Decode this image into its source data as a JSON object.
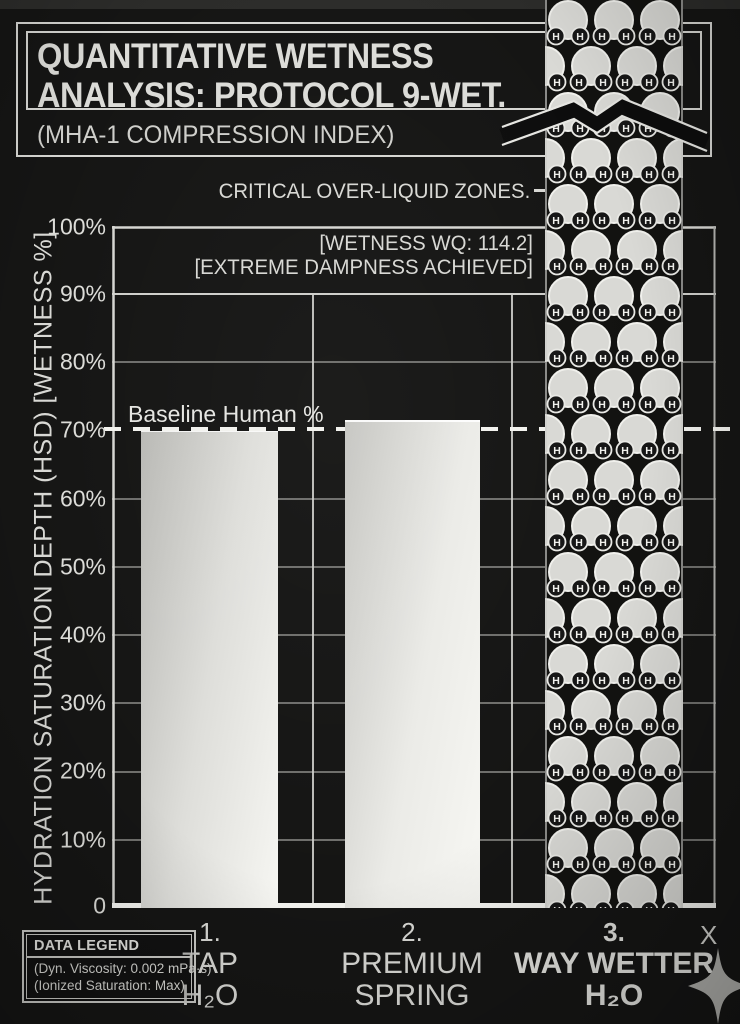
{
  "header": {
    "title_line1": "QUANTITATIVE WETNESS",
    "title_line2": "ANALYSIS: PROTOCOL 9-WET.",
    "subtitle": "(MHA-1 COMPRESSION INDEX)"
  },
  "annotations": {
    "critical_zones": "CRITICAL OVER-LIQUID ZONES.",
    "wetness_wq": "[WETNESS WQ: 114.2]",
    "extreme_dampness": "[EXTREME DAMPNESS ACHIEVED]",
    "baseline_label": "Baseline Human %",
    "x_axis_end_label": "X"
  },
  "legend": {
    "title": "DATA LEGEND",
    "line1": "(Dyn. Viscosity: 0.002 mPa·s)",
    "line2": "(Ionized Saturation: Max)"
  },
  "icons": {
    "sparkle": "four-point-sparkle-icon",
    "axis_break": "axis-break-chevron-icon",
    "bar3_fill": "water-molecule-pattern"
  },
  "colors": {
    "background": "#151514",
    "ink": "#dededa",
    "grid": "#8d8d89",
    "bright_line": "#f2f2ee",
    "bar_fill_light": "#f6f6f2",
    "bar_fill_dark": "#b9b9b5",
    "sparkle": "#b2b2ae"
  },
  "chart_data": {
    "type": "bar",
    "title": "QUANTITATIVE WETNESS ANALYSIS: PROTOCOL 9-WET.",
    "subtitle": "(MHA-1 COMPRESSION INDEX)",
    "ylabel": "HYDRATION SATURATION DEPTH (HSD) [WETNESS %]",
    "xlabel": "X",
    "ylim": [
      0,
      100
    ],
    "grid": true,
    "legend_position": "bottom-left",
    "ytick_labels": [
      "100%",
      "90%",
      "80%",
      "70%",
      "60%",
      "50%",
      "40%",
      "30%",
      "20%",
      "10%",
      "0"
    ],
    "ytick_values": [
      100,
      90,
      80,
      70,
      60,
      50,
      40,
      30,
      20,
      10,
      0
    ],
    "categories": [
      {
        "rank": "1.",
        "name": "TAP",
        "sub": "H₂O"
      },
      {
        "rank": "2.",
        "name": "PREMIUM",
        "sub": "SPRING"
      },
      {
        "rank": "3.",
        "name": "WAY WETTER",
        "sub": "H₂O"
      }
    ],
    "values": [
      70,
      71.5,
      114.2
    ],
    "value_notes": [
      "equal to baseline human %",
      "slightly above baseline",
      "off scale — WETNESS WQ 114.2, EXTREME DAMPNESS ACHIEVED, drawn as over-saturated molecule column with axis break"
    ],
    "baseline": {
      "label": "Baseline Human %",
      "value": 70,
      "style": "dashed"
    }
  }
}
